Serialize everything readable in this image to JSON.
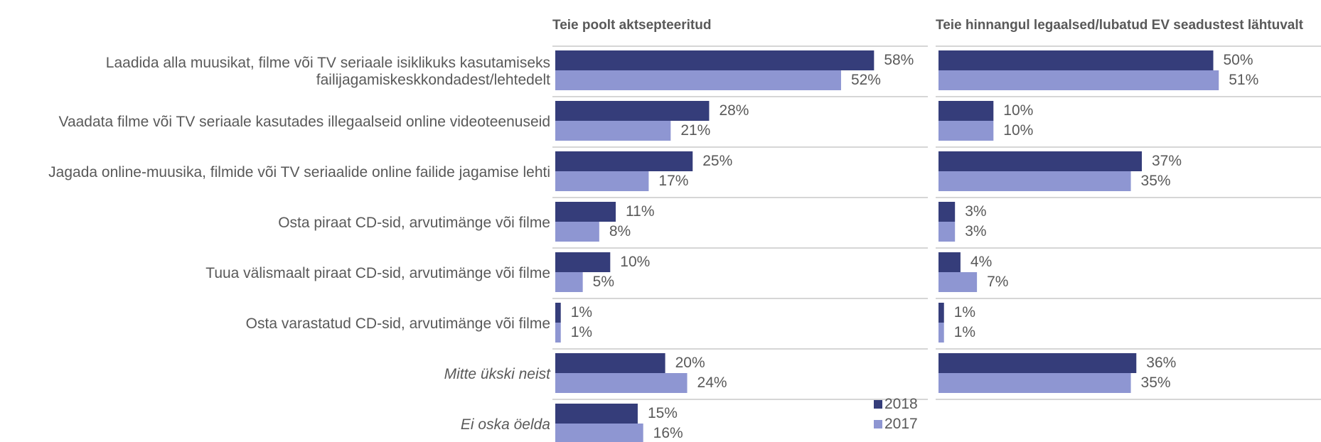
{
  "chart_data": [
    {
      "type": "bar",
      "orientation": "horizontal",
      "title": "Teie poolt aktsepteeritud",
      "categories": [
        "Laadida alla muusikat, filme või TV seriaale isiklikuks kasutamiseks failijagamiskeskkondadest/lehtedelt",
        "Vaadata filme või TV seriaale kasutades illegaalseid online videoteenuseid",
        "Jagada online-muusika, filmide või TV seriaalide online failide jagamise lehti",
        "Osta piraat CD-sid, arvutimänge või filme",
        "Tuua välismaalt piraat CD-sid, arvutimänge või filme",
        "Osta varastatud CD-sid, arvutimänge või filme",
        "Mitte ükski neist",
        "Ei oska öelda"
      ],
      "series": [
        {
          "name": "2018",
          "color": "#353d7a",
          "values": [
            58,
            28,
            25,
            11,
            10,
            1,
            20,
            15
          ],
          "value_labels": [
            "58%",
            "28%",
            "25%",
            "11%",
            "10%",
            "1%",
            "20%",
            "15%"
          ]
        },
        {
          "name": "2017",
          "color": "#8e96d2",
          "values": [
            52,
            21,
            17,
            8,
            5,
            1,
            24,
            16
          ],
          "value_labels": [
            "52%",
            "21%",
            "17%",
            "8%",
            "5%",
            "1%",
            "24%",
            "16%"
          ]
        }
      ]
    },
    {
      "type": "bar",
      "orientation": "horizontal",
      "title": "Teie hinnangul legaalsed/lubatud EV seadustest lähtuvalt",
      "series": [
        {
          "name": "2018",
          "color": "#353d7a",
          "values": [
            50,
            10,
            37,
            3,
            4,
            1,
            36,
            null
          ],
          "value_labels": [
            "50%",
            "10%",
            "37%",
            "3%",
            "4%",
            "1%",
            "36%",
            null
          ]
        },
        {
          "name": "2017",
          "color": "#8e96d2",
          "values": [
            51,
            10,
            35,
            3,
            7,
            1,
            35,
            null
          ],
          "value_labels": [
            "51%",
            "10%",
            "35%",
            "3%",
            "7%",
            "1%",
            "35%",
            null
          ]
        }
      ]
    }
  ]
}
